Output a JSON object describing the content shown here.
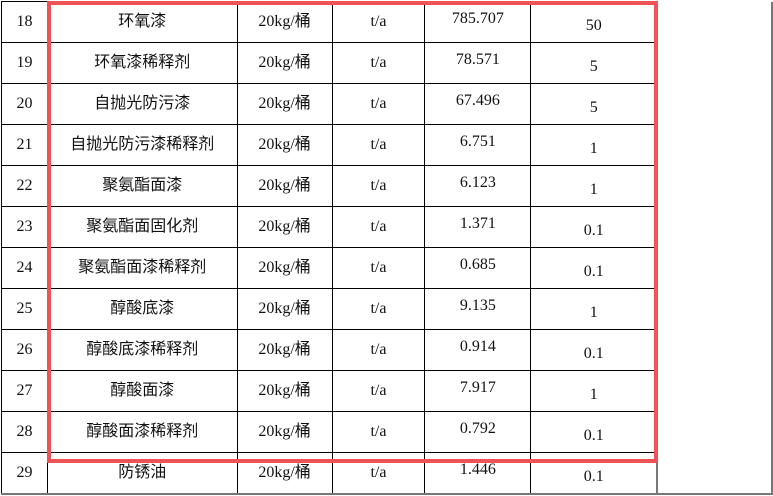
{
  "rows": [
    {
      "no": "18",
      "name": "环氧漆",
      "spec": "20kg/桶",
      "unit": "t/a",
      "amount": "785.707",
      "max": "50"
    },
    {
      "no": "19",
      "name": "环氧漆稀释剂",
      "spec": "20kg/桶",
      "unit": "t/a",
      "amount": "78.571",
      "max": "5"
    },
    {
      "no": "20",
      "name": "自抛光防污漆",
      "spec": "20kg/桶",
      "unit": "t/a",
      "amount": "67.496",
      "max": "5"
    },
    {
      "no": "21",
      "name": "自抛光防污漆稀释剂",
      "spec": "20kg/桶",
      "unit": "t/a",
      "amount": "6.751",
      "max": "1"
    },
    {
      "no": "22",
      "name": "聚氨酯面漆",
      "spec": "20kg/桶",
      "unit": "t/a",
      "amount": "6.123",
      "max": "1"
    },
    {
      "no": "23",
      "name": "聚氨酯面固化剂",
      "spec": "20kg/桶",
      "unit": "t/a",
      "amount": "1.371",
      "max": "0.1"
    },
    {
      "no": "24",
      "name": "聚氨酯面漆稀释剂",
      "spec": "20kg/桶",
      "unit": "t/a",
      "amount": "0.685",
      "max": "0.1"
    },
    {
      "no": "25",
      "name": "醇酸底漆",
      "spec": "20kg/桶",
      "unit": "t/a",
      "amount": "9.135",
      "max": "1"
    },
    {
      "no": "26",
      "name": "醇酸底漆稀释剂",
      "spec": "20kg/桶",
      "unit": "t/a",
      "amount": "0.914",
      "max": "0.1"
    },
    {
      "no": "27",
      "name": "醇酸面漆",
      "spec": "20kg/桶",
      "unit": "t/a",
      "amount": "7.917",
      "max": "1"
    },
    {
      "no": "28",
      "name": "醇酸面漆稀释剂",
      "spec": "20kg/桶",
      "unit": "t/a",
      "amount": "0.792",
      "max": "0.1"
    },
    {
      "no": "29",
      "name": "防锈油",
      "spec": "20kg/桶",
      "unit": "t/a",
      "amount": "1.446",
      "max": "0.1"
    }
  ],
  "highlight_color": "#f05356"
}
